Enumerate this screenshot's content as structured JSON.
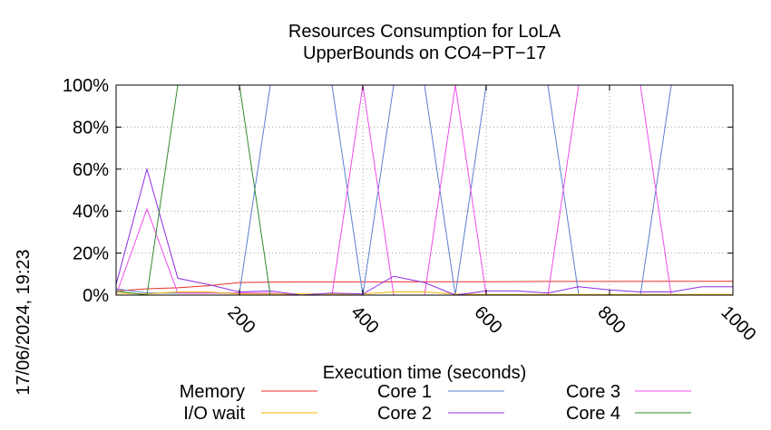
{
  "chart_data": {
    "type": "line",
    "title": [
      "Resources Consumption for LoLA",
      "UpperBounds on CO4−PT−17"
    ],
    "xlabel": "Execution time (seconds)",
    "ylabel": "",
    "xlim": [
      0,
      1000
    ],
    "ylim": [
      0,
      100
    ],
    "x_ticks": [
      200,
      400,
      600,
      800,
      1000
    ],
    "y_ticks": [
      0,
      20,
      40,
      60,
      80,
      100
    ],
    "y_tick_labels": [
      "0%",
      "20%",
      "40%",
      "60%",
      "80%",
      "100%"
    ],
    "grid": true,
    "legend_position": "bottom",
    "timestamp": "17/06/2024, 19:23",
    "series": [
      {
        "name": "Memory",
        "color": "#e8302c",
        "points": [
          [
            0,
            2
          ],
          [
            50,
            3
          ],
          [
            100,
            3.5
          ],
          [
            150,
            4.5
          ],
          [
            200,
            6
          ],
          [
            250,
            6.2
          ],
          [
            300,
            6.3
          ],
          [
            400,
            6.3
          ],
          [
            500,
            6.4
          ],
          [
            600,
            6.4
          ],
          [
            700,
            6.5
          ],
          [
            800,
            6.5
          ],
          [
            900,
            6.6
          ],
          [
            1000,
            6.6
          ]
        ]
      },
      {
        "name": "Core 1",
        "color": "#5b7fd0",
        "points": [
          [
            0,
            3
          ],
          [
            50,
            1
          ],
          [
            100,
            1
          ],
          [
            150,
            1
          ],
          [
            200,
            1
          ],
          [
            250,
            100
          ],
          [
            300,
            100
          ],
          [
            350,
            100
          ],
          [
            400,
            0
          ],
          [
            450,
            100
          ],
          [
            500,
            100
          ],
          [
            550,
            0
          ],
          [
            600,
            100
          ],
          [
            650,
            100
          ],
          [
            700,
            100
          ],
          [
            750,
            0
          ],
          [
            800,
            0
          ],
          [
            850,
            0
          ],
          [
            900,
            100
          ],
          [
            950,
            100
          ],
          [
            1000,
            100
          ]
        ]
      },
      {
        "name": "Core 3",
        "color": "#f04ce8",
        "points": [
          [
            0,
            0
          ],
          [
            50,
            41
          ],
          [
            100,
            1
          ],
          [
            150,
            1
          ],
          [
            200,
            1
          ],
          [
            250,
            1
          ],
          [
            300,
            0
          ],
          [
            350,
            0
          ],
          [
            400,
            100
          ],
          [
            450,
            0
          ],
          [
            500,
            0
          ],
          [
            550,
            100
          ],
          [
            600,
            0
          ],
          [
            650,
            0
          ],
          [
            700,
            0
          ],
          [
            750,
            100
          ],
          [
            800,
            100
          ],
          [
            850,
            100
          ],
          [
            900,
            0
          ],
          [
            950,
            0
          ],
          [
            1000,
            0
          ]
        ]
      },
      {
        "name": "I/O wait",
        "color": "#f0b400",
        "points": [
          [
            0,
            1
          ],
          [
            50,
            0.5
          ],
          [
            100,
            1.5
          ],
          [
            150,
            1.5
          ],
          [
            200,
            0.5
          ],
          [
            250,
            0.5
          ],
          [
            300,
            0.5
          ],
          [
            350,
            0.5
          ],
          [
            400,
            0.5
          ],
          [
            450,
            1.5
          ],
          [
            500,
            1.5
          ],
          [
            550,
            0.5
          ],
          [
            600,
            0.3
          ],
          [
            700,
            0.3
          ],
          [
            800,
            0.3
          ],
          [
            900,
            0.3
          ],
          [
            1000,
            0.3
          ]
        ]
      },
      {
        "name": "Core 2",
        "color": "#8e2ce0",
        "points": [
          [
            0,
            5
          ],
          [
            50,
            60
          ],
          [
            100,
            8
          ],
          [
            150,
            5
          ],
          [
            200,
            1.5
          ],
          [
            250,
            2
          ],
          [
            300,
            0
          ],
          [
            350,
            1
          ],
          [
            400,
            0.5
          ],
          [
            450,
            9
          ],
          [
            500,
            6
          ],
          [
            550,
            0
          ],
          [
            600,
            2
          ],
          [
            650,
            2
          ],
          [
            700,
            1
          ],
          [
            750,
            4
          ],
          [
            800,
            2.5
          ],
          [
            850,
            1.5
          ],
          [
            900,
            1.5
          ],
          [
            950,
            4
          ],
          [
            1000,
            4
          ]
        ]
      },
      {
        "name": "Core 4",
        "color": "#2f8a2f",
        "points": [
          [
            0,
            2
          ],
          [
            50,
            0
          ],
          [
            100,
            100
          ],
          [
            150,
            100
          ],
          [
            200,
            100
          ],
          [
            250,
            0
          ],
          [
            300,
            0
          ],
          [
            350,
            0
          ],
          [
            400,
            0
          ],
          [
            500,
            0
          ],
          [
            600,
            0
          ],
          [
            700,
            0
          ],
          [
            800,
            0
          ],
          [
            900,
            0
          ],
          [
            1000,
            0
          ]
        ]
      }
    ],
    "legend_order": [
      "Memory",
      "I/O wait",
      "Core 1",
      "Core 2",
      "Core 3",
      "Core 4"
    ]
  }
}
